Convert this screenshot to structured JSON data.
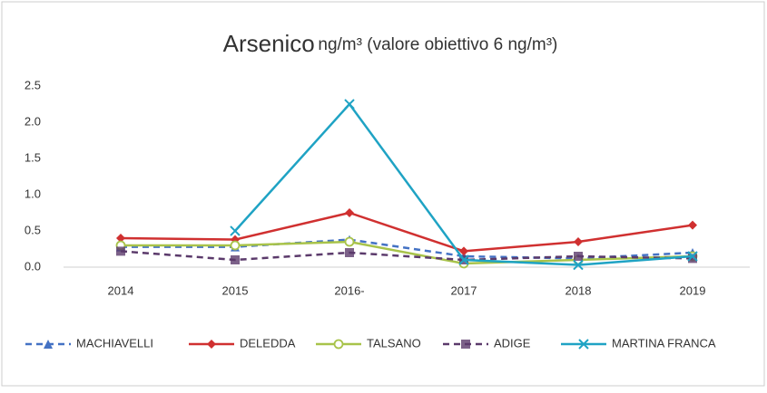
{
  "chart_data": {
    "type": "line",
    "title": "Arsenico",
    "subtitle": "ng/m³ (valore obiettivo 6 ng/m³)",
    "categories": [
      "2014",
      "2015",
      "2016-",
      "2017",
      "2018",
      "2019"
    ],
    "ylim": [
      0,
      2.5
    ],
    "yticks": [
      {
        "value": 0,
        "label": "0.0"
      },
      0.5,
      {
        "value": 1,
        "label": "1.0"
      },
      1.5,
      {
        "value": 2,
        "label": "2.0"
      },
      2.5
    ],
    "grid": false,
    "legend": "bottom",
    "series": [
      {
        "name": "MACHIAVELLI",
        "color": "#4472c4",
        "dashed": true,
        "marker": "triangle",
        "values": [
          0.28,
          0.28,
          0.38,
          0.15,
          0.12,
          0.2
        ]
      },
      {
        "name": "DELEDDA",
        "color": "#d03030",
        "dashed": false,
        "marker": "diamond",
        "values": [
          0.4,
          0.38,
          0.75,
          0.22,
          0.35,
          0.58
        ]
      },
      {
        "name": "TALSANO",
        "color": "#a8c34a",
        "dashed": false,
        "marker": "circle",
        "values": [
          0.3,
          0.3,
          0.35,
          0.05,
          0.1,
          0.15
        ]
      },
      {
        "name": "ADIGE",
        "color": "#5b3a6b",
        "dashed": true,
        "marker": "square",
        "values": [
          0.22,
          0.1,
          0.2,
          0.1,
          0.15,
          0.12
        ]
      },
      {
        "name": "MARTINA FRANCA",
        "color": "#1fa3c4",
        "dashed": false,
        "marker": "x",
        "values": [
          null,
          0.5,
          2.25,
          0.1,
          0.03,
          0.15
        ]
      }
    ]
  }
}
